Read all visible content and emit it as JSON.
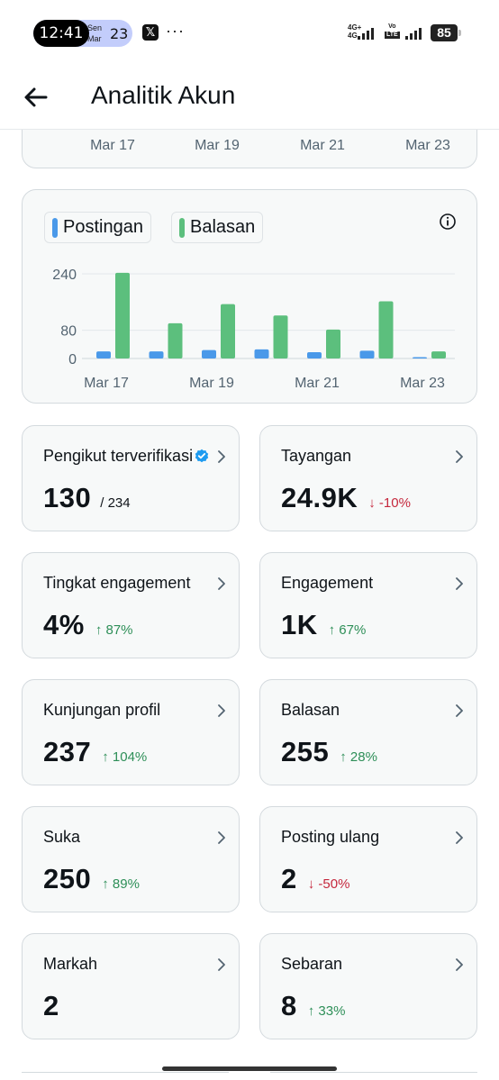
{
  "status_bar": {
    "time": "12:41",
    "day": "Sen",
    "month": "Mar",
    "date": "23",
    "network_primary": "4G+",
    "network_secondary": "4G",
    "volte": "Vo",
    "lte": "LTE",
    "battery": "85",
    "app_icon": "x-logo-icon",
    "more": "···"
  },
  "header": {
    "title": "Analitik Akun",
    "back_icon": "arrow-left-icon"
  },
  "top_chart": {
    "x_labels": [
      "Mar 17",
      "Mar 19",
      "Mar 21",
      "Mar 23"
    ]
  },
  "chart_data": {
    "type": "bar",
    "categories": [
      "Mar 17",
      "Mar 18",
      "Mar 19",
      "Mar 20",
      "Mar 21",
      "Mar 22",
      "Mar 23"
    ],
    "x_tick_labels": [
      "Mar 17",
      "Mar 19",
      "Mar 21",
      "Mar 23"
    ],
    "y_tick_labels": [
      "240",
      "80",
      "0"
    ],
    "y_ticks": [
      240,
      80,
      0
    ],
    "ylim": [
      0,
      250
    ],
    "series": [
      {
        "name": "Postingan",
        "color": "#4a99e9",
        "values": [
          20,
          20,
          24,
          26,
          18,
          22,
          2
        ]
      },
      {
        "name": "Balasan",
        "color": "#5cbf7d",
        "values": [
          243,
          100,
          154,
          122,
          82,
          162,
          20
        ]
      }
    ],
    "legend_placement": "top-left",
    "grid": true
  },
  "metrics": [
    {
      "label": "Pengikut terverifikasi",
      "value": "130",
      "sub": "/ 234",
      "change": "",
      "direction": "",
      "verified": true
    },
    {
      "label": "Tayangan",
      "value": "24.9K",
      "sub": "",
      "change": "↓ -10%",
      "direction": "down"
    },
    {
      "label": "Tingkat engagement",
      "value": "4%",
      "sub": "",
      "change": "↑ 87%",
      "direction": "up"
    },
    {
      "label": "Engagement",
      "value": "1K",
      "sub": "",
      "change": "↑ 67%",
      "direction": "up"
    },
    {
      "label": "Kunjungan profil",
      "value": "237",
      "sub": "",
      "change": "↑ 104%",
      "direction": "up"
    },
    {
      "label": "Balasan",
      "value": "255",
      "sub": "",
      "change": "↑ 28%",
      "direction": "up"
    },
    {
      "label": "Suka",
      "value": "250",
      "sub": "",
      "change": "↑ 89%",
      "direction": "up"
    },
    {
      "label": "Posting ulang",
      "value": "2",
      "sub": "",
      "change": "↓ -50%",
      "direction": "down"
    },
    {
      "label": "Markah",
      "value": "2",
      "sub": "",
      "change": "",
      "direction": ""
    },
    {
      "label": "Sebaran",
      "value": "8",
      "sub": "",
      "change": "↑ 33%",
      "direction": "up"
    }
  ],
  "colors": {
    "card_bg": "#f7f9f9",
    "border": "#d4dade",
    "up": "#2e8f58",
    "down": "#c5283d",
    "verified": "#1d9bf0"
  }
}
